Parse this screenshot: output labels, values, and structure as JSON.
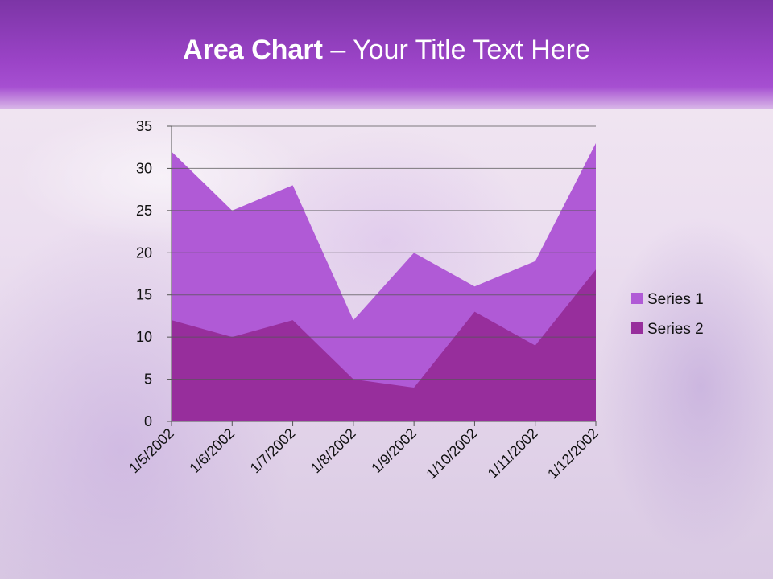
{
  "title": {
    "bold": "Area Chart",
    "rest": " – Your Title Text Here"
  },
  "colors": {
    "series1": "#b05ad6",
    "series2": "#972e9c"
  },
  "chart_data": {
    "type": "area",
    "categories": [
      "1/5/2002",
      "1/6/2002",
      "1/7/2002",
      "1/8/2002",
      "1/9/2002",
      "1/10/2002",
      "1/11/2002",
      "1/12/2002"
    ],
    "series": [
      {
        "name": "Series 1",
        "values": [
          32,
          25,
          28,
          12,
          20,
          16,
          19,
          33
        ]
      },
      {
        "name": "Series 2",
        "values": [
          12,
          10,
          12,
          5,
          4,
          13,
          9,
          18
        ]
      }
    ],
    "ylim": [
      0,
      35
    ],
    "yticks": [
      0,
      5,
      10,
      15,
      20,
      25,
      30,
      35
    ],
    "grid": true,
    "legend": "right"
  }
}
